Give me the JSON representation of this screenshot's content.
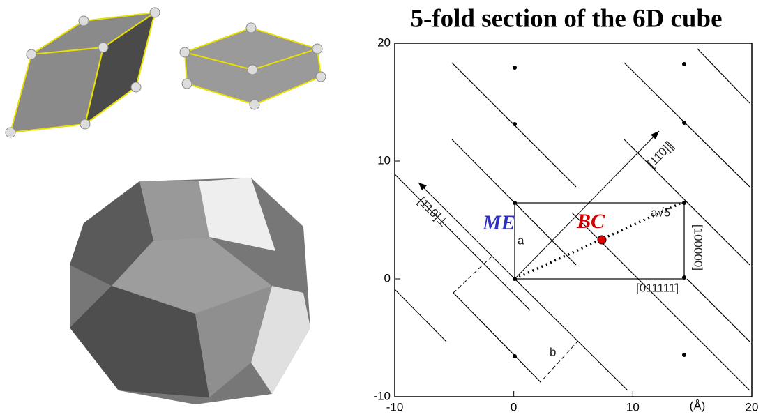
{
  "title": "5-fold section of the 6D cube",
  "plot": {
    "xlim": [
      -10,
      20
    ],
    "ylim": [
      -10,
      20
    ],
    "xticks": [
      -10,
      0,
      10,
      20
    ],
    "yticks": [
      -10,
      0,
      10,
      20
    ],
    "unit": "(Å)",
    "labels": {
      "me": "ME",
      "bc": "BC",
      "a": "a",
      "a5": "a√5",
      "b": "b",
      "v100000": "[100000]",
      "v011111": "[011111̄]",
      "perp": "[1̄10]⊥",
      "par": "[11̄0]∥"
    }
  }
}
